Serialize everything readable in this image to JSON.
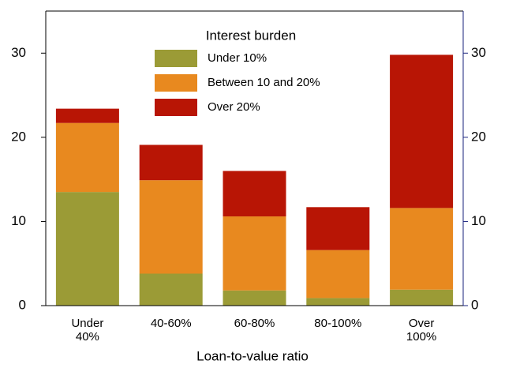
{
  "chart_data": {
    "type": "stacked-bar",
    "x_label": "Loan-to-value ratio",
    "legend_title": "Interest burden",
    "categories": [
      "Under\n40%",
      "40-60%",
      "60-80%",
      "80-100%",
      "Over\n100%"
    ],
    "series": [
      {
        "name": "Under 10%",
        "color": "#9b9b36",
        "values": [
          13.5,
          3.8,
          1.8,
          0.9,
          1.9
        ]
      },
      {
        "name": "Between 10 and 20%",
        "color": "#e8891f",
        "values": [
          8.2,
          11.1,
          8.8,
          5.7,
          9.7
        ]
      },
      {
        "name": "Over 20%",
        "color": "#b81505",
        "values": [
          1.7,
          4.2,
          5.4,
          5.1,
          18.2
        ]
      }
    ],
    "ylim": [
      0,
      35
    ],
    "yticks": [
      0,
      10,
      20,
      30
    ],
    "y2lim": [
      0,
      35
    ],
    "y2ticks": [
      0,
      10,
      20,
      30
    ]
  }
}
